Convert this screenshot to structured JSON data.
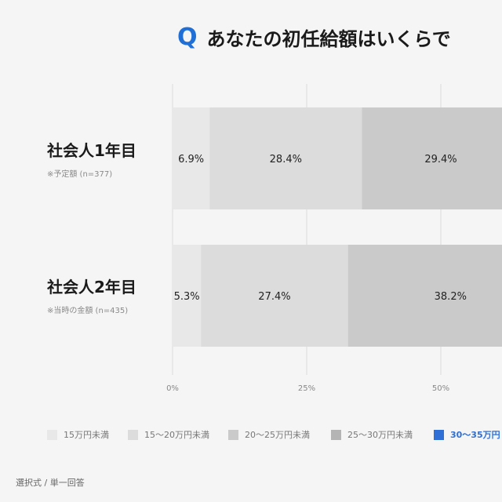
{
  "title": {
    "q": "Q",
    "text": "あなたの初任給額はいくらで"
  },
  "chart_data": {
    "type": "bar",
    "orientation": "horizontal-stacked-percent",
    "categories": [
      {
        "label": "社会人1年目",
        "note": "※予定額 (n=377)"
      },
      {
        "label": "社会人2年目",
        "note": "※当時の金額 (n=435)"
      }
    ],
    "series": [
      {
        "name": "15万円未満",
        "color": "#e8e8e8",
        "values": [
          6.9,
          5.3
        ],
        "value_labels": [
          "6.9%",
          "5.3%"
        ]
      },
      {
        "name": "15〜20万円未満",
        "color": "#dcdcdc",
        "values": [
          28.4,
          27.4
        ],
        "value_labels": [
          "28.4%",
          "27.4%"
        ]
      },
      {
        "name": "20〜25万円未満",
        "color": "#cacaca",
        "values": [
          29.4,
          38.2
        ],
        "value_labels": [
          "29.4%",
          "38.2%"
        ]
      },
      {
        "name": "25〜30万円未満",
        "color": "#b4b4b4",
        "values": [
          null,
          null
        ],
        "value_labels": [
          "",
          ""
        ]
      },
      {
        "name": "30〜35万円",
        "color": "#2f6fd6",
        "values": [
          null,
          null
        ],
        "value_labels": [
          "",
          ""
        ]
      }
    ],
    "xticks": [
      "0%",
      "25%",
      "50%"
    ],
    "xlim": [
      0,
      100
    ],
    "grid": true
  },
  "footer": "選択式 / 単一回答"
}
